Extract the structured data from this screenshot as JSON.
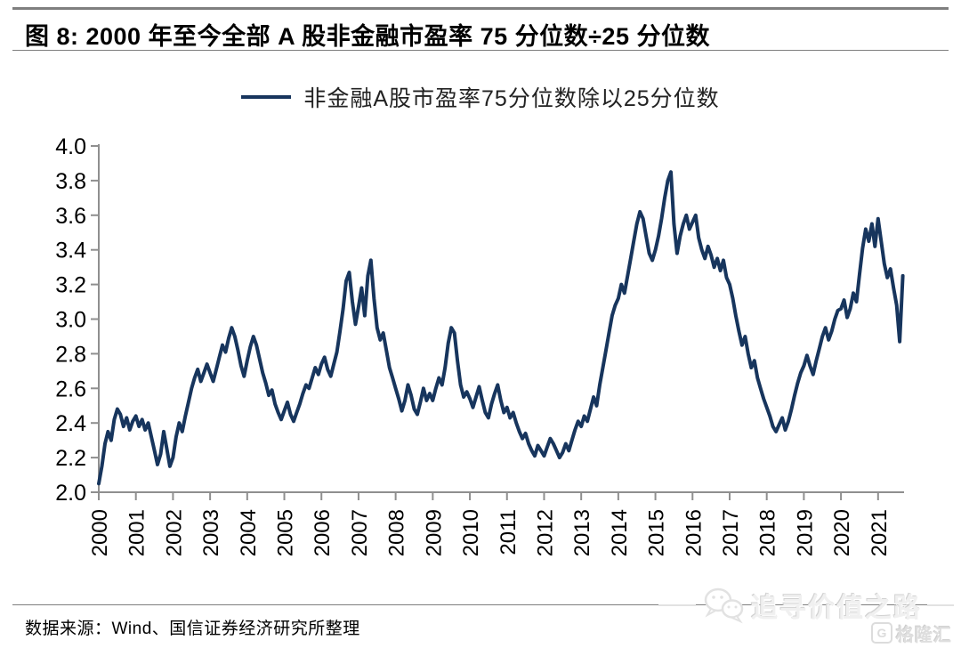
{
  "figure": {
    "title": "图 8: 2000 年至今全部 A 股非金融市盈率 75 分位数÷25 分位数",
    "source": "数据来源：Wind、国信证券经济研究所整理"
  },
  "legend": {
    "label": "非金融A股市盈率75分位数除以25分位数"
  },
  "watermark": {
    "wechat_icon": "wechat-icon",
    "slogan": "追寻价值之路",
    "brand_icon_letter": "G",
    "brand": "格隆汇"
  },
  "colors": {
    "line": "#17355D",
    "axis": "#8f8f8f",
    "tick_text": "#000000",
    "divider": "#7f7f7f",
    "watermark": "#e0e0e0"
  },
  "chart_data": {
    "type": "line",
    "title": "2000 年至今全部 A 股非金融市盈率 75 分位数÷25 分位数",
    "xlabel": "",
    "ylabel": "",
    "xlim": [
      2000,
      2021.7
    ],
    "ylim": [
      2.0,
      4.0
    ],
    "grid": false,
    "legend_position": "top-center",
    "x_ticks": [
      "2000",
      "2001",
      "2002",
      "2003",
      "2004",
      "2005",
      "2006",
      "2007",
      "2008",
      "2009",
      "2010",
      "2011",
      "2012",
      "2013",
      "2014",
      "2015",
      "2016",
      "2017",
      "2018",
      "2019",
      "2020",
      "2021"
    ],
    "y_ticks": [
      "4.0",
      "3.8",
      "3.6",
      "3.4",
      "3.2",
      "3.0",
      "2.8",
      "2.6",
      "2.4",
      "2.2",
      "2.0"
    ],
    "series": [
      {
        "name": "非金融A股市盈率75分位数除以25分位数",
        "start_year": 2000,
        "points_per_year": 12,
        "values": [
          2.05,
          2.15,
          2.28,
          2.35,
          2.3,
          2.42,
          2.48,
          2.45,
          2.38,
          2.43,
          2.36,
          2.41,
          2.44,
          2.38,
          2.42,
          2.36,
          2.4,
          2.32,
          2.24,
          2.16,
          2.22,
          2.35,
          2.25,
          2.15,
          2.2,
          2.32,
          2.4,
          2.35,
          2.44,
          2.52,
          2.6,
          2.66,
          2.71,
          2.64,
          2.69,
          2.74,
          2.69,
          2.64,
          2.71,
          2.78,
          2.85,
          2.81,
          2.89,
          2.95,
          2.9,
          2.82,
          2.73,
          2.67,
          2.76,
          2.84,
          2.9,
          2.85,
          2.77,
          2.69,
          2.63,
          2.56,
          2.59,
          2.51,
          2.46,
          2.42,
          2.47,
          2.52,
          2.45,
          2.41,
          2.46,
          2.51,
          2.57,
          2.62,
          2.6,
          2.66,
          2.72,
          2.68,
          2.74,
          2.78,
          2.71,
          2.67,
          2.74,
          2.81,
          2.93,
          3.06,
          3.22,
          3.27,
          3.1,
          2.97,
          3.07,
          3.18,
          3.02,
          3.25,
          3.34,
          3.12,
          2.95,
          2.88,
          2.92,
          2.82,
          2.72,
          2.66,
          2.6,
          2.54,
          2.47,
          2.53,
          2.62,
          2.56,
          2.48,
          2.45,
          2.52,
          2.6,
          2.53,
          2.57,
          2.53,
          2.6,
          2.66,
          2.62,
          2.72,
          2.86,
          2.95,
          2.92,
          2.76,
          2.62,
          2.55,
          2.58,
          2.54,
          2.49,
          2.55,
          2.61,
          2.53,
          2.46,
          2.43,
          2.51,
          2.57,
          2.62,
          2.53,
          2.46,
          2.49,
          2.43,
          2.46,
          2.4,
          2.35,
          2.31,
          2.34,
          2.28,
          2.24,
          2.21,
          2.27,
          2.24,
          2.21,
          2.26,
          2.31,
          2.28,
          2.24,
          2.2,
          2.23,
          2.28,
          2.24,
          2.3,
          2.36,
          2.41,
          2.38,
          2.44,
          2.41,
          2.48,
          2.55,
          2.5,
          2.62,
          2.72,
          2.82,
          2.92,
          3.02,
          3.08,
          3.12,
          3.2,
          3.15,
          3.25,
          3.35,
          3.45,
          3.55,
          3.62,
          3.58,
          3.48,
          3.38,
          3.34,
          3.4,
          3.48,
          3.58,
          3.7,
          3.8,
          3.85,
          3.55,
          3.38,
          3.48,
          3.55,
          3.6,
          3.52,
          3.56,
          3.6,
          3.47,
          3.4,
          3.35,
          3.42,
          3.37,
          3.3,
          3.35,
          3.28,
          3.34,
          3.24,
          3.2,
          3.12,
          3.02,
          2.93,
          2.85,
          2.9,
          2.8,
          2.72,
          2.76,
          2.66,
          2.6,
          2.54,
          2.49,
          2.44,
          2.38,
          2.35,
          2.39,
          2.43,
          2.36,
          2.41,
          2.48,
          2.56,
          2.63,
          2.69,
          2.73,
          2.79,
          2.73,
          2.68,
          2.76,
          2.83,
          2.9,
          2.95,
          2.88,
          2.93,
          3.0,
          3.05,
          3.06,
          3.11,
          3.01,
          3.06,
          3.15,
          3.1,
          3.26,
          3.41,
          3.52,
          3.45,
          3.55,
          3.42,
          3.58,
          3.45,
          3.32,
          3.24,
          3.29,
          3.18,
          3.08,
          2.87,
          3.25
        ]
      }
    ]
  }
}
